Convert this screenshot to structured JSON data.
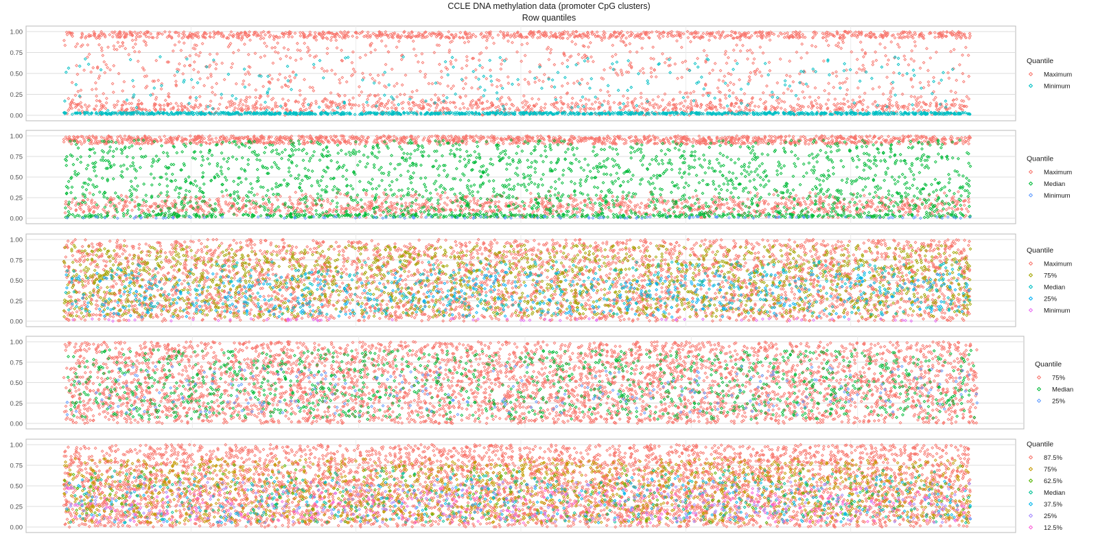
{
  "figure": {
    "title": "CCLE DNA methylation data (promoter CpG clusters)",
    "subtitle": "Row quantiles"
  },
  "colors": {
    "Maximum": "#F8766D",
    "Minimum": "#00BFC4",
    "Median": "#00BA38",
    "75%": "#A3A500",
    "25%": "#619CFF",
    "87.5%": "#F8766D",
    "62.5%": "#39B600",
    "37.5%": "#00B0F6",
    "12.5%": "#FF62BC",
    "panel4_75%": "#F8766D",
    "panel4_Median": "#00BA38",
    "panel4_25%": "#619CFF",
    "panel3_Median": "#00BFC4",
    "panel3_Minimum": "#E76BF3",
    "panel5_75%": "#C49A00",
    "panel5_Median": "#00C094"
  },
  "chart_data": [
    {
      "type": "scatter",
      "ylim": [
        0,
        1
      ],
      "yticks": [
        "0.00",
        "0.25",
        "0.50",
        "0.75",
        "1.00"
      ],
      "legend_title": "Quantile",
      "legend_position": "right",
      "grid": true,
      "series": [
        {
          "name": "Maximum",
          "color": "#F8766D",
          "distribution": "spread 0-1, dense near 1.00 and 0.10"
        },
        {
          "name": "Minimum",
          "color": "#00BFC4",
          "distribution": "dense near 0.02, sparse up to 0.75"
        }
      ]
    },
    {
      "type": "scatter",
      "ylim": [
        0,
        1
      ],
      "yticks": [
        "0.00",
        "0.25",
        "0.50",
        "0.75",
        "1.00"
      ],
      "legend_title": "Quantile",
      "legend_position": "right",
      "grid": true,
      "series": [
        {
          "name": "Maximum",
          "color": "#F8766D",
          "distribution": "dense near 1.00 and 0.15"
        },
        {
          "name": "Median",
          "color": "#00BA38",
          "distribution": "spread 0-0.95, dense near 0.03"
        },
        {
          "name": "Minimum",
          "color": "#619CFF",
          "distribution": "near 0.00"
        }
      ]
    },
    {
      "type": "scatter",
      "ylim": [
        0,
        1
      ],
      "yticks": [
        "0.00",
        "0.25",
        "0.50",
        "0.75",
        "1.00"
      ],
      "legend_title": "Quantile",
      "legend_position": "right",
      "grid": true,
      "series": [
        {
          "name": "Maximum",
          "color": "#F8766D",
          "distribution": "band 0.00-1.00"
        },
        {
          "name": "75%",
          "color": "#A3A500",
          "distribution": "spread 0.05-0.95"
        },
        {
          "name": "Median",
          "color": "#00BFC4",
          "distribution": "spread 0.05-0.80"
        },
        {
          "name": "25%",
          "color": "#00B0F6",
          "distribution": "spread 0.05-0.60"
        },
        {
          "name": "Minimum",
          "color": "#E76BF3",
          "distribution": "near 0.00"
        }
      ]
    },
    {
      "type": "scatter",
      "ylim": [
        0,
        1
      ],
      "yticks": [
        "0.00",
        "0.25",
        "0.50",
        "0.75",
        "1.00"
      ],
      "legend_title": "Quantile",
      "legend_position": "right",
      "grid": true,
      "series": [
        {
          "name": "75%",
          "color": "#F8766D",
          "distribution": "band 0.00-1.00"
        },
        {
          "name": "Median",
          "color": "#00BA38",
          "distribution": "spread 0.05-0.90"
        },
        {
          "name": "25%",
          "color": "#619CFF",
          "distribution": "spread 0.10-0.70"
        }
      ]
    },
    {
      "type": "scatter",
      "ylim": [
        0,
        1
      ],
      "yticks": [
        "0.00",
        "0.25",
        "0.50",
        "0.75",
        "1.00"
      ],
      "legend_title": "Quantile",
      "legend_position": "right",
      "grid": true,
      "series": [
        {
          "name": "87.5%",
          "color": "#F8766D",
          "distribution": "band 0.00-1.00"
        },
        {
          "name": "75%",
          "color": "#C49A00",
          "distribution": "spread 0.05-0.90"
        },
        {
          "name": "62.5%",
          "color": "#53B400",
          "distribution": "spread 0.05-0.85"
        },
        {
          "name": "Median",
          "color": "#00C094",
          "distribution": "spread 0.10-0.70"
        },
        {
          "name": "37.5%",
          "color": "#00B6EB",
          "distribution": "spread 0.10-0.60"
        },
        {
          "name": "25%",
          "color": "#A58AFF",
          "distribution": "spread 0.10-0.50"
        },
        {
          "name": "12.5%",
          "color": "#FB61D7",
          "distribution": "spread 0.05-0.40"
        }
      ]
    }
  ]
}
